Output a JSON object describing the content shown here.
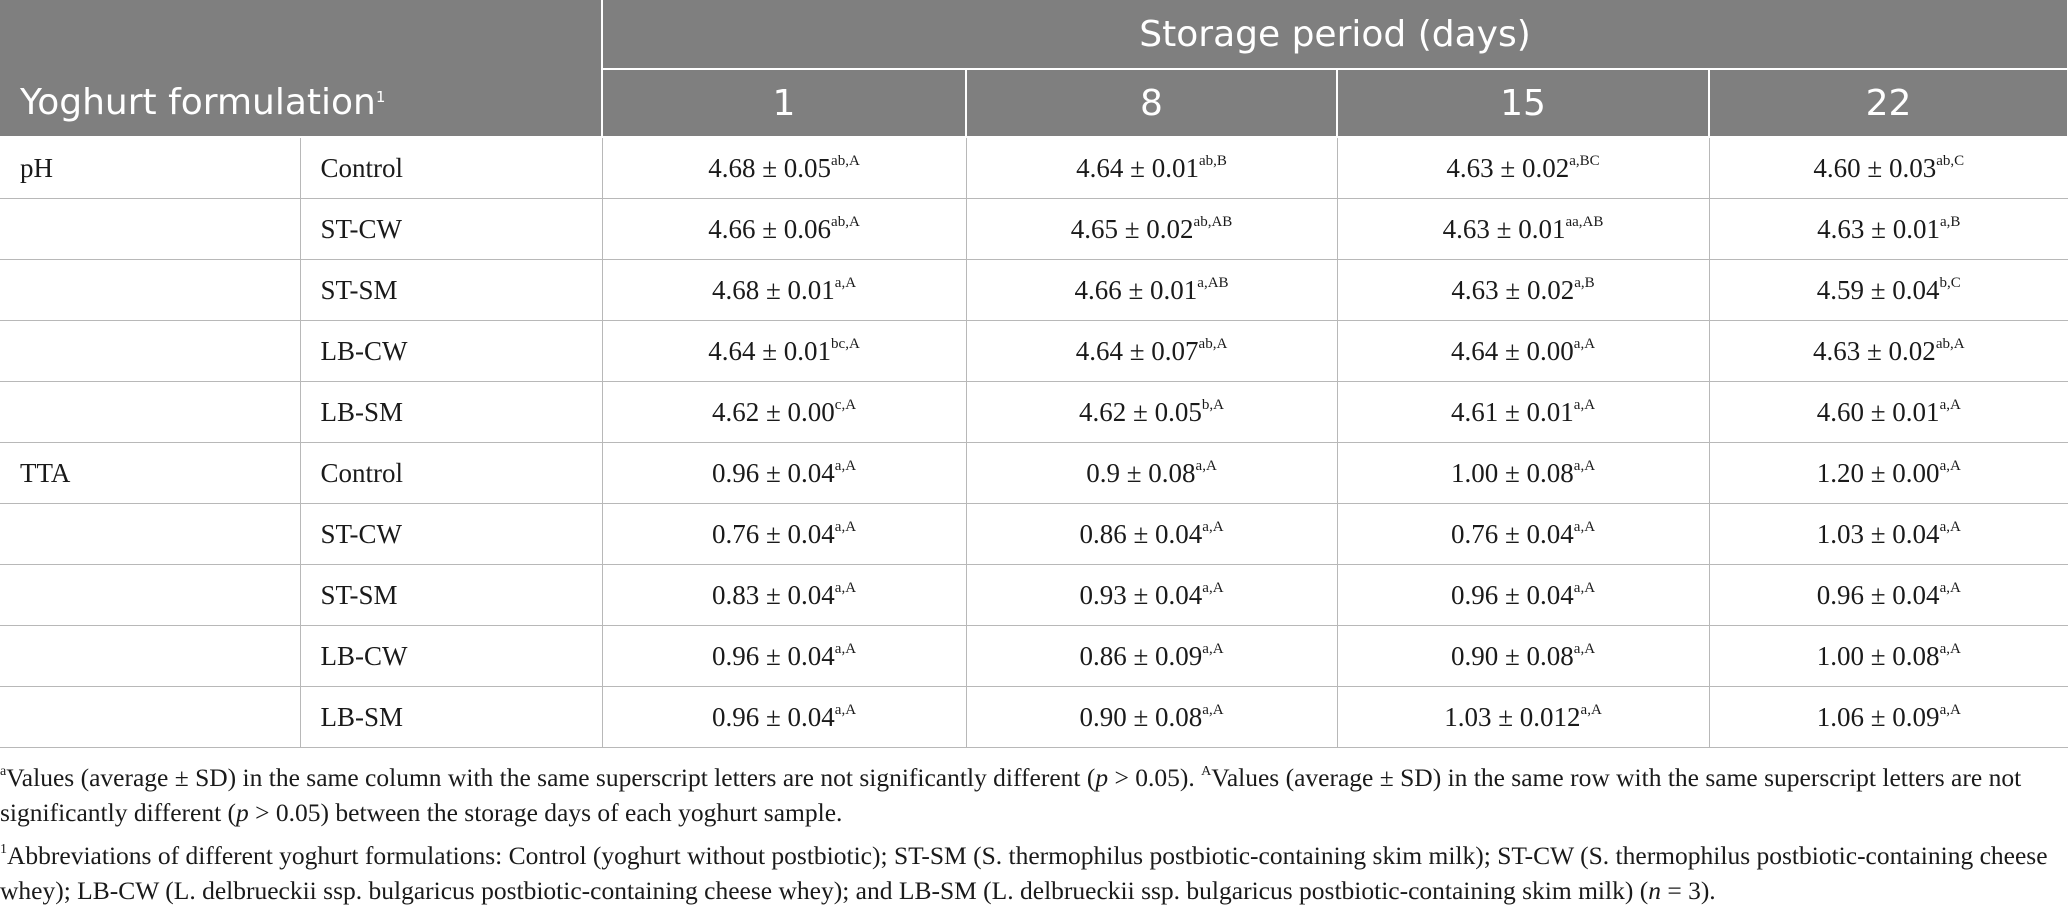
{
  "header": {
    "group_label": "Storage period (days)",
    "row_label": "Yoghurt formulation",
    "row_label_sup": "1",
    "days": [
      "1",
      "8",
      "15",
      "22"
    ]
  },
  "rows": [
    {
      "param": "pH",
      "formulation": "Control",
      "cells": [
        {
          "v": "4.68 ± 0.05",
          "s": "ab,A"
        },
        {
          "v": "4.64 ± 0.01",
          "s": "ab,B"
        },
        {
          "v": "4.63 ± 0.02",
          "s": "a,BC"
        },
        {
          "v": "4.60 ± 0.03",
          "s": "ab,C"
        }
      ]
    },
    {
      "param": "",
      "formulation": "ST-CW",
      "cells": [
        {
          "v": "4.66 ± 0.06",
          "s": "ab,A"
        },
        {
          "v": "4.65 ± 0.02",
          "s": "ab,AB"
        },
        {
          "v": "4.63 ± 0.01",
          "s": "aa,AB"
        },
        {
          "v": "4.63 ± 0.01",
          "s": "a,B"
        }
      ]
    },
    {
      "param": "",
      "formulation": "ST-SM",
      "cells": [
        {
          "v": "4.68 ± 0.01",
          "s": "a,A"
        },
        {
          "v": "4.66 ± 0.01",
          "s": "a,AB"
        },
        {
          "v": "4.63 ± 0.02",
          "s": "a,B"
        },
        {
          "v": "4.59 ± 0.04",
          "s": "b,C"
        }
      ]
    },
    {
      "param": "",
      "formulation": "LB-CW",
      "cells": [
        {
          "v": "4.64 ± 0.01",
          "s": "bc,A"
        },
        {
          "v": "4.64 ± 0.07",
          "s": "ab,A"
        },
        {
          "v": "4.64 ± 0.00",
          "s": "a,A"
        },
        {
          "v": "4.63 ± 0.02",
          "s": "ab,A"
        }
      ]
    },
    {
      "param": "",
      "formulation": "LB-SM",
      "cells": [
        {
          "v": "4.62 ± 0.00",
          "s": "c,A"
        },
        {
          "v": "4.62 ± 0.05",
          "s": "b,A"
        },
        {
          "v": "4.61 ± 0.01",
          "s": "a,A"
        },
        {
          "v": "4.60 ± 0.01",
          "s": "a,A"
        }
      ]
    },
    {
      "param": "TTA",
      "formulation": "Control",
      "cells": [
        {
          "v": "0.96 ± 0.04",
          "s": "a,A"
        },
        {
          "v": "0.9 ± 0.08",
          "s": "a,A"
        },
        {
          "v": "1.00 ± 0.08",
          "s": "a,A"
        },
        {
          "v": "1.20 ± 0.00",
          "s": "a,A"
        }
      ]
    },
    {
      "param": "",
      "formulation": "ST-CW",
      "cells": [
        {
          "v": "0.76 ± 0.04",
          "s": "a,A"
        },
        {
          "v": "0.86 ± 0.04",
          "s": "a,A"
        },
        {
          "v": "0.76 ± 0.04",
          "s": "a,A"
        },
        {
          "v": "1.03 ± 0.04",
          "s": "a,A"
        }
      ]
    },
    {
      "param": "",
      "formulation": "ST-SM",
      "cells": [
        {
          "v": "0.83 ± 0.04",
          "s": "a,A"
        },
        {
          "v": "0.93 ± 0.04",
          "s": "a,A"
        },
        {
          "v": "0.96 ± 0.04",
          "s": "a,A"
        },
        {
          "v": "0.96 ± 0.04",
          "s": "a,A"
        }
      ]
    },
    {
      "param": "",
      "formulation": "LB-CW",
      "cells": [
        {
          "v": "0.96 ± 0.04",
          "s": "a,A"
        },
        {
          "v": "0.86 ± 0.09",
          "s": "a,A"
        },
        {
          "v": "0.90 ± 0.08",
          "s": "a,A"
        },
        {
          "v": "1.00 ± 0.08",
          "s": "a,A"
        }
      ]
    },
    {
      "param": "",
      "formulation": "LB-SM",
      "cells": [
        {
          "v": "0.96 ± 0.04",
          "s": "a,A"
        },
        {
          "v": "0.90 ± 0.08",
          "s": "a,A"
        },
        {
          "v": "1.03 ± 0.012",
          "s": "a,A"
        },
        {
          "v": "1.06 ± 0.09",
          "s": "a,A"
        }
      ]
    }
  ],
  "footnotes": {
    "note1_sup": "a",
    "note1_text1": "Values (average ± SD) in the same column with the same superscript letters are not significantly different (",
    "note1_p": "p",
    "note1_text2": " > 0.05). ",
    "note1_sup2": "A",
    "note1_text3": "Values (average ± SD) in the same row with the same superscript letters are not significantly different (",
    "note1_p2": "p",
    "note1_text4": " > 0.05) between the storage days of each yoghurt sample.",
    "note2_sup": "1",
    "note2_text1": "Abbreviations of different yoghurt formulations: Control (yoghurt without postbiotic); ST-SM (S. thermophilus postbiotic-containing skim milk); ST-CW (S. thermophilus postbiotic-containing cheese whey); LB-CW (L. delbrueckii ssp. bulgaricus postbiotic-containing cheese whey); and LB-SM (L. delbrueckii ssp. bulgaricus postbiotic-containing skim milk) (",
    "note2_n": "n",
    "note2_text2": " = 3)."
  }
}
